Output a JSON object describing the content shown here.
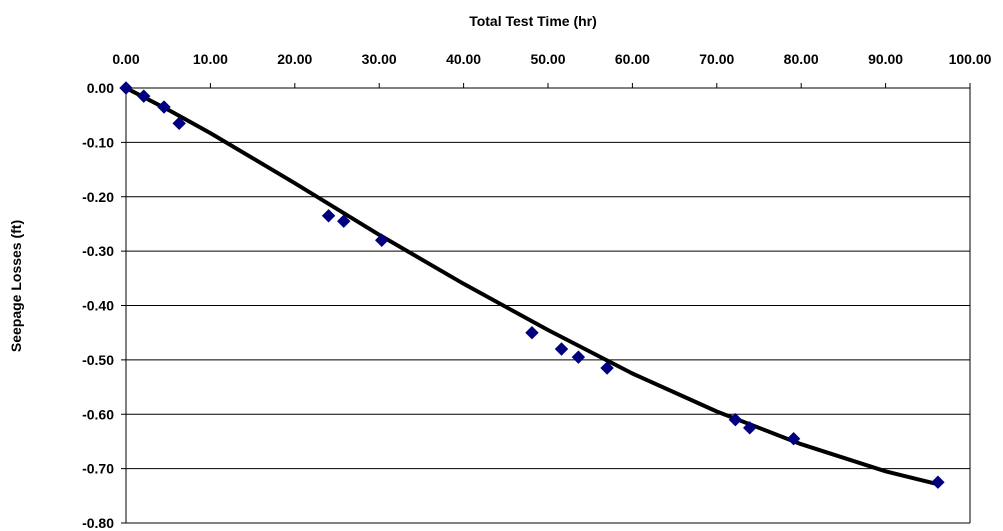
{
  "chart_data": {
    "type": "scatter",
    "title": "",
    "xlabel": "Total Test Time (hr)",
    "ylabel": "Seepage Losses (ft)",
    "xlim": [
      0,
      100
    ],
    "ylim": [
      -0.8,
      0
    ],
    "x_axis_position": "top",
    "grid": "horizontal",
    "legend": "none",
    "x_ticks": [
      "0.00",
      "10.00",
      "20.00",
      "30.00",
      "40.00",
      "50.00",
      "60.00",
      "70.00",
      "80.00",
      "90.00",
      "100.00"
    ],
    "y_ticks": [
      "0.00",
      "-0.10",
      "-0.20",
      "-0.30",
      "-0.40",
      "-0.50",
      "-0.60",
      "-0.70",
      "-0.80"
    ],
    "series": [
      {
        "marker": "diamond",
        "color": "#00007F",
        "x": [
          0.0,
          2.1,
          4.5,
          6.3,
          24.0,
          25.8,
          30.3,
          48.1,
          51.6,
          53.6,
          57.0,
          72.2,
          73.9,
          79.1,
          96.2
        ],
        "y": [
          0.0,
          -0.015,
          -0.035,
          -0.065,
          -0.235,
          -0.245,
          -0.28,
          -0.45,
          -0.48,
          -0.495,
          -0.515,
          -0.61,
          -0.625,
          -0.645,
          -0.725
        ]
      }
    ],
    "trendline": {
      "color": "#000000",
      "x": [
        0,
        5,
        10,
        20,
        30,
        40,
        50,
        60,
        70,
        80,
        90,
        96
      ],
      "y": [
        0.0,
        -0.04,
        -0.083,
        -0.175,
        -0.27,
        -0.36,
        -0.445,
        -0.525,
        -0.595,
        -0.655,
        -0.705,
        -0.728
      ]
    }
  }
}
